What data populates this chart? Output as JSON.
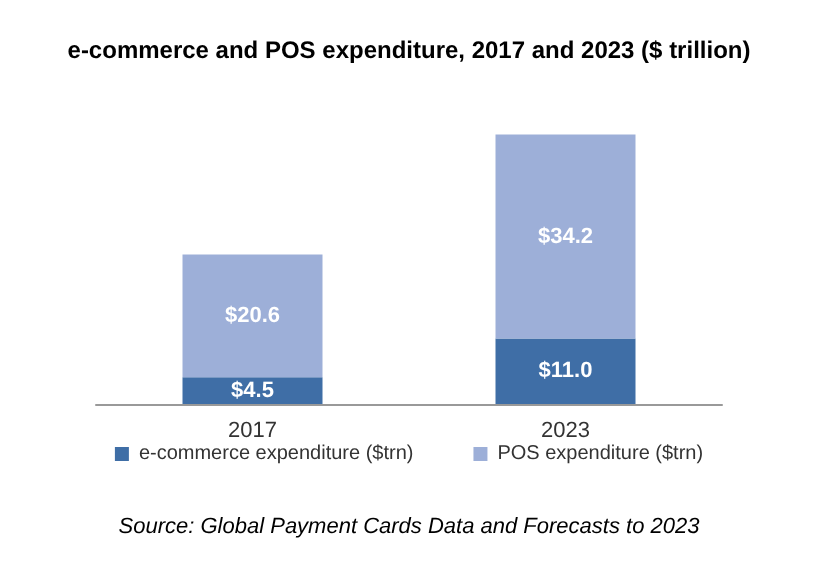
{
  "chart_data": {
    "type": "bar",
    "title": "e-commerce and POS expenditure, 2017 and 2023 ($ trillion)",
    "categories": [
      "2017",
      "2023"
    ],
    "stacked": true,
    "legend": "bottom",
    "series": [
      {
        "name": "e-commerce expenditure ($trn)",
        "color": "#3f6ea6",
        "values": [
          4.5,
          11.0
        ],
        "value_labels": [
          "$4.5",
          "$11.0"
        ]
      },
      {
        "name": "POS expenditure ($trn)",
        "color": "#9dafd8",
        "values": [
          20.6,
          34.2
        ],
        "value_labels": [
          "$20.6",
          "$34.2"
        ]
      }
    ],
    "annotations": [
      "Source: Global Payment Cards Data and Forecasts to 2023"
    ]
  }
}
